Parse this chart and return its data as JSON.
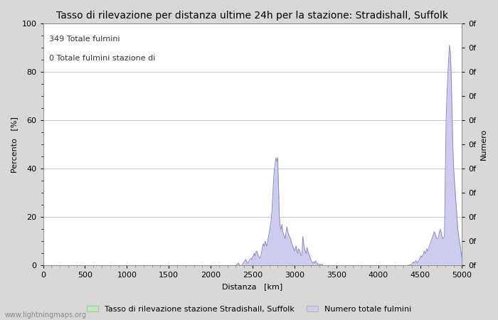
{
  "title": "Tasso di rilevazione per distanza ultime 24h per la stazione: Stradishall, Suffolk",
  "xlabel": "Distanza   [km]",
  "ylabel_left": "Percento   [%]",
  "ylabel_right": "Numero",
  "annotation_line1": "349 Totale fulmini",
  "annotation_line2": "0 Totale fulmini stazione di",
  "xlim": [
    0,
    5000
  ],
  "ylim_left": [
    0,
    100
  ],
  "xticks": [
    0,
    500,
    1000,
    1500,
    2000,
    2500,
    3000,
    3500,
    4000,
    4500,
    5000
  ],
  "yticks_left": [
    0,
    20,
    40,
    60,
    80,
    100
  ],
  "right_yticks": [
    0,
    10,
    20,
    30,
    40,
    50,
    60,
    70,
    80,
    90,
    100
  ],
  "right_labels": [
    "0f",
    "0f",
    "0f",
    "0f",
    "0f",
    "0f",
    "0f",
    "0f",
    "0f",
    "0f",
    "0f"
  ],
  "bg_color": "#d8d8d8",
  "plot_bg_color": "#ffffff",
  "line_color": "#8888cc",
  "fill_color": "#ccccee",
  "green_legend_color": "#bbeebb",
  "blue_legend_color": "#ccccee",
  "legend_label1": "Tasso di rilevazione stazione Stradishall, Suffolk",
  "legend_label2": "Numero totale fulmini",
  "watermark": "www.lightningmaps.org",
  "title_fontsize": 10,
  "label_fontsize": 8,
  "tick_fontsize": 8,
  "annotation_fontsize": 8,
  "x_data": [
    0,
    10,
    20,
    30,
    40,
    50,
    60,
    70,
    80,
    90,
    100,
    200,
    300,
    400,
    500,
    600,
    700,
    800,
    900,
    1000,
    1100,
    1200,
    1300,
    1400,
    1500,
    1600,
    1700,
    1800,
    1900,
    2000,
    2010,
    2020,
    2030,
    2040,
    2050,
    2100,
    2150,
    2200,
    2250,
    2260,
    2270,
    2280,
    2290,
    2300,
    2310,
    2320,
    2330,
    2340,
    2350,
    2360,
    2370,
    2380,
    2390,
    2400,
    2410,
    2420,
    2430,
    2440,
    2450,
    2460,
    2470,
    2480,
    2490,
    2500,
    2510,
    2520,
    2530,
    2540,
    2550,
    2560,
    2570,
    2580,
    2590,
    2600,
    2610,
    2620,
    2630,
    2640,
    2650,
    2660,
    2670,
    2680,
    2690,
    2700,
    2710,
    2720,
    2730,
    2740,
    2750,
    2760,
    2770,
    2780,
    2790,
    2800,
    2810,
    2820,
    2830,
    2840,
    2850,
    2860,
    2870,
    2880,
    2890,
    2900,
    2910,
    2920,
    2930,
    2940,
    2950,
    2960,
    2970,
    2980,
    2990,
    3000,
    3010,
    3020,
    3030,
    3040,
    3050,
    3060,
    3070,
    3080,
    3090,
    3100,
    3110,
    3120,
    3130,
    3140,
    3150,
    3160,
    3170,
    3180,
    3190,
    3200,
    3210,
    3220,
    3230,
    3240,
    3250,
    3260,
    3270,
    3280,
    3290,
    3300,
    3310,
    3320,
    3330,
    3340,
    3350,
    3400,
    3450,
    3500,
    3550,
    3600,
    3650,
    3700,
    3750,
    3800,
    3850,
    3900,
    3950,
    4000,
    4050,
    4100,
    4150,
    4200,
    4250,
    4300,
    4350,
    4400,
    4410,
    4420,
    4430,
    4440,
    4450,
    4460,
    4470,
    4480,
    4490,
    4500,
    4510,
    4520,
    4530,
    4540,
    4550,
    4560,
    4570,
    4580,
    4590,
    4600,
    4610,
    4620,
    4630,
    4640,
    4650,
    4660,
    4670,
    4680,
    4690,
    4700,
    4710,
    4720,
    4730,
    4740,
    4750,
    4760,
    4770,
    4780,
    4790,
    4800,
    4810,
    4820,
    4830,
    4840,
    4850,
    4860,
    4870,
    4880,
    4890,
    4900,
    4910,
    4920,
    4930,
    4940,
    4950,
    4960,
    4970,
    4980,
    4990,
    5000
  ],
  "y_data": [
    0,
    0,
    0,
    0,
    0,
    0,
    0,
    0,
    0,
    0,
    0,
    0,
    0,
    0,
    0,
    0,
    0,
    0,
    0,
    0,
    0,
    0,
    0,
    0,
    0,
    0,
    0,
    0,
    0,
    0,
    0,
    0,
    0,
    0,
    0,
    0,
    0,
    0,
    0,
    0,
    0,
    0,
    0,
    0,
    0.5,
    0.5,
    1.0,
    0.5,
    0,
    0,
    0,
    0.5,
    1.0,
    1.5,
    2.0,
    2.5,
    1.5,
    1.0,
    1.5,
    2.0,
    2.5,
    3.0,
    2.5,
    3.5,
    4.0,
    5.0,
    4.0,
    5.5,
    6.0,
    5.0,
    4.0,
    3.5,
    3.0,
    4.0,
    6.0,
    8.0,
    9.0,
    8.0,
    10.0,
    9.0,
    8.0,
    10.0,
    12.0,
    14.0,
    16.0,
    18.0,
    22.0,
    28.0,
    35.0,
    40.0,
    42.0,
    44.5,
    43.0,
    44.5,
    32.0,
    20.0,
    16.0,
    15.0,
    17.0,
    14.0,
    13.0,
    12.0,
    11.0,
    14.0,
    16.0,
    14.0,
    13.0,
    12.0,
    11.5,
    10.0,
    9.0,
    8.0,
    7.0,
    6.0,
    7.0,
    8.0,
    6.0,
    5.0,
    7.0,
    6.5,
    5.0,
    4.0,
    5.0,
    12.0,
    9.0,
    7.0,
    6.0,
    5.0,
    7.5,
    6.0,
    5.0,
    4.0,
    3.0,
    2.0,
    1.5,
    1.0,
    1.5,
    1.0,
    2.0,
    1.5,
    1.0,
    0.5,
    0.5,
    0.5,
    0.5,
    0.5,
    0.5,
    0,
    0,
    0,
    0,
    0,
    0,
    0,
    0,
    0,
    0,
    0,
    0,
    0,
    0,
    0,
    0,
    0,
    0,
    0,
    0,
    0,
    0,
    0.5,
    1.0,
    1.5,
    1.0,
    1.5,
    2.0,
    1.5,
    1.0,
    2.0,
    2.5,
    3.0,
    4.0,
    3.5,
    4.0,
    5.0,
    6.0,
    5.0,
    5.5,
    7.0,
    6.0,
    7.0,
    8.0,
    9.0,
    10.0,
    11.0,
    12.0,
    13.0,
    14.0,
    13.0,
    12.0,
    11.0,
    11.0,
    12.0,
    14.0,
    15.0,
    14.0,
    12.0,
    11.0,
    11.5,
    12.0,
    37.0,
    60.0,
    70.0,
    78.0,
    85.0,
    91.0,
    88.0,
    80.0,
    65.0,
    50.0,
    40.0,
    35.0,
    30.0,
    25.0,
    20.0,
    15.0,
    12.0,
    10.0,
    8.0,
    5.0,
    3.0
  ]
}
